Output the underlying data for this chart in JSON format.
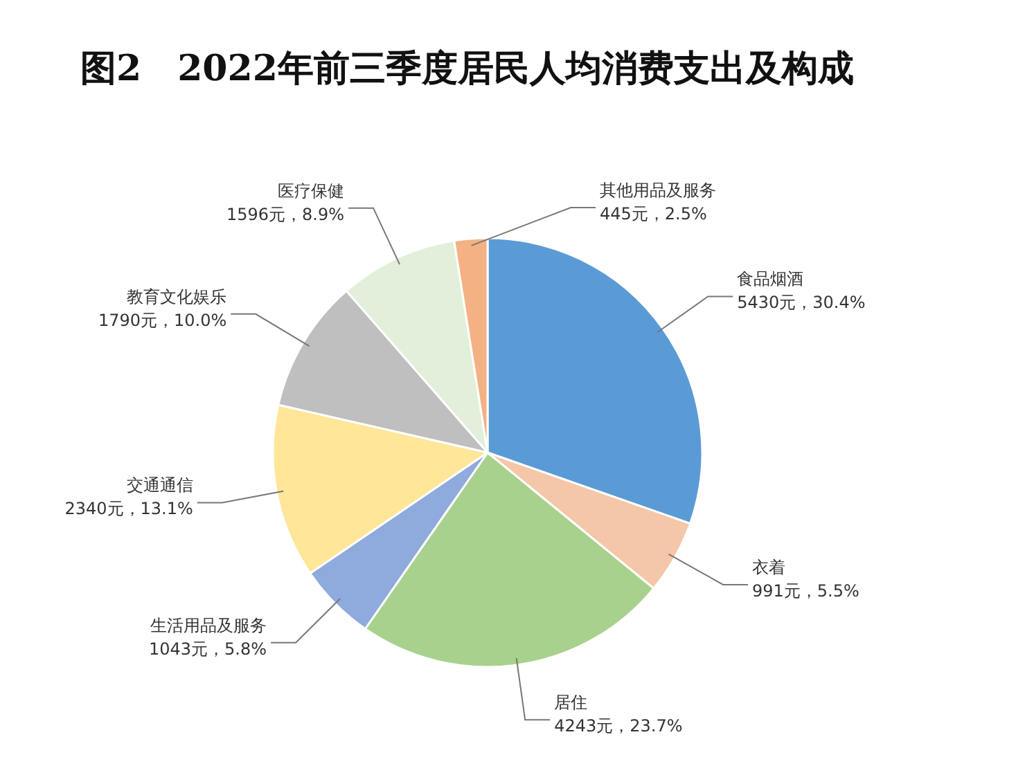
{
  "chart_data": {
    "type": "pie",
    "title": "图2　2022年前三季度居民人均消费支出及构成",
    "categories": [
      "食品烟酒",
      "衣着",
      "居住",
      "生活用品及服务",
      "交通通信",
      "教育文化娱乐",
      "医疗保健",
      "其他用品及服务"
    ],
    "values": [
      5430,
      991,
      4243,
      1043,
      2340,
      1790,
      1596,
      445
    ],
    "value_labels": [
      "5430元，30.4%",
      "991元，5.5%",
      "4243元，23.7%",
      "1043元，5.8%",
      "2340元，13.1%",
      "1790元，10.0%",
      "1596元，8.9%",
      "445元，2.5%"
    ],
    "colors": [
      "#5b9bd5",
      "#f4c7a8",
      "#a9d18e",
      "#8faadc",
      "#ffe699",
      "#bfbfbf",
      "#e2efda",
      "#f4b183"
    ]
  }
}
